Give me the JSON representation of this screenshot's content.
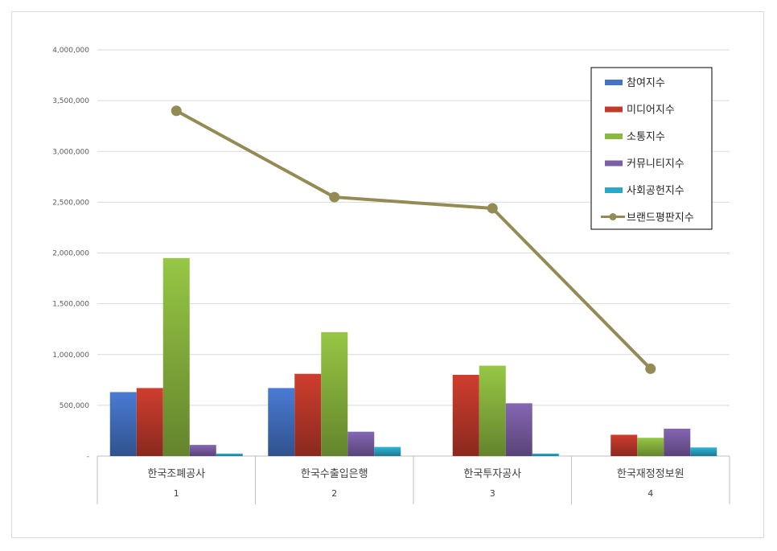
{
  "chart_data": {
    "type": "bar",
    "categories": [
      "한국조폐공사",
      "한국수출입은행",
      "한국투자공사",
      "한국재정정보원"
    ],
    "category_index": [
      "1",
      "2",
      "3",
      "4"
    ],
    "ylim": [
      0,
      4000000
    ],
    "yticks": [
      0,
      500000,
      1000000,
      1500000,
      2000000,
      2500000,
      3000000,
      3500000,
      4000000
    ],
    "ytick_labels": [
      "-",
      "500,000",
      "1,000,000",
      "1,500,000",
      "2,000,000",
      "2,500,000",
      "3,000,000",
      "3,500,000",
      "4,000,000"
    ],
    "grid": true,
    "legend_position": "top-right",
    "series": [
      {
        "name": "참여지수",
        "kind": "bar",
        "color": "#4472c4",
        "values": [
          630000,
          670000,
          0,
          0
        ]
      },
      {
        "name": "미디어지수",
        "kind": "bar",
        "color": "#c0392b",
        "values": [
          670000,
          810000,
          800000,
          210000
        ]
      },
      {
        "name": "소통지수",
        "kind": "bar",
        "color": "#8bb83f",
        "values": [
          1950000,
          1220000,
          890000,
          180000
        ]
      },
      {
        "name": "커뮤니티지수",
        "kind": "bar",
        "color": "#7b5ea7",
        "values": [
          110000,
          240000,
          520000,
          270000
        ]
      },
      {
        "name": "사회공헌지수",
        "kind": "bar",
        "color": "#2aa8c8",
        "values": [
          25000,
          90000,
          25000,
          85000
        ]
      },
      {
        "name": "브랜드평판지수",
        "kind": "line",
        "color": "#948a54",
        "values": [
          3400000,
          2550000,
          2440000,
          860000
        ]
      }
    ]
  }
}
